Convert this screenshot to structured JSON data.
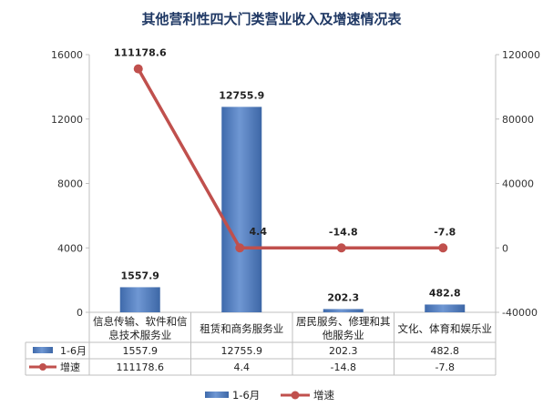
{
  "chart_data": {
    "type": "bar",
    "title": "其他营利性四大门类营业收入及增速情况表",
    "categories": [
      [
        "信息传输、软件和信",
        "息技术服务业"
      ],
      [
        "租赁和商务服务业"
      ],
      [
        "居民服务、修理和其",
        "他服务业"
      ],
      [
        "文化、体育和娱乐业"
      ]
    ],
    "series": [
      {
        "name": "1-6月",
        "type": "bar",
        "axis": "left",
        "values": [
          1557.9,
          12755.9,
          202.3,
          482.8
        ],
        "labels": [
          "1557.9",
          "12755.9",
          "202.3",
          "482.8"
        ],
        "color": "#4a76b9"
      },
      {
        "name": "增速",
        "type": "line",
        "axis": "right",
        "values": [
          111178.6,
          4.4,
          -14.8,
          -7.8
        ],
        "labels": [
          "111178.6",
          "4.4",
          "-14.8",
          "-7.8"
        ],
        "color": "#c0504d"
      }
    ],
    "y_left": {
      "min": 0,
      "max": 16000,
      "ticks": [
        "0",
        "4000",
        "8000",
        "12000",
        "16000"
      ]
    },
    "y_right": {
      "min": -40000,
      "max": 120000,
      "ticks": [
        "-40000",
        "0",
        "40000",
        "80000",
        "120000"
      ]
    },
    "data_table": true,
    "legend_position": "bottom",
    "grid": false
  }
}
